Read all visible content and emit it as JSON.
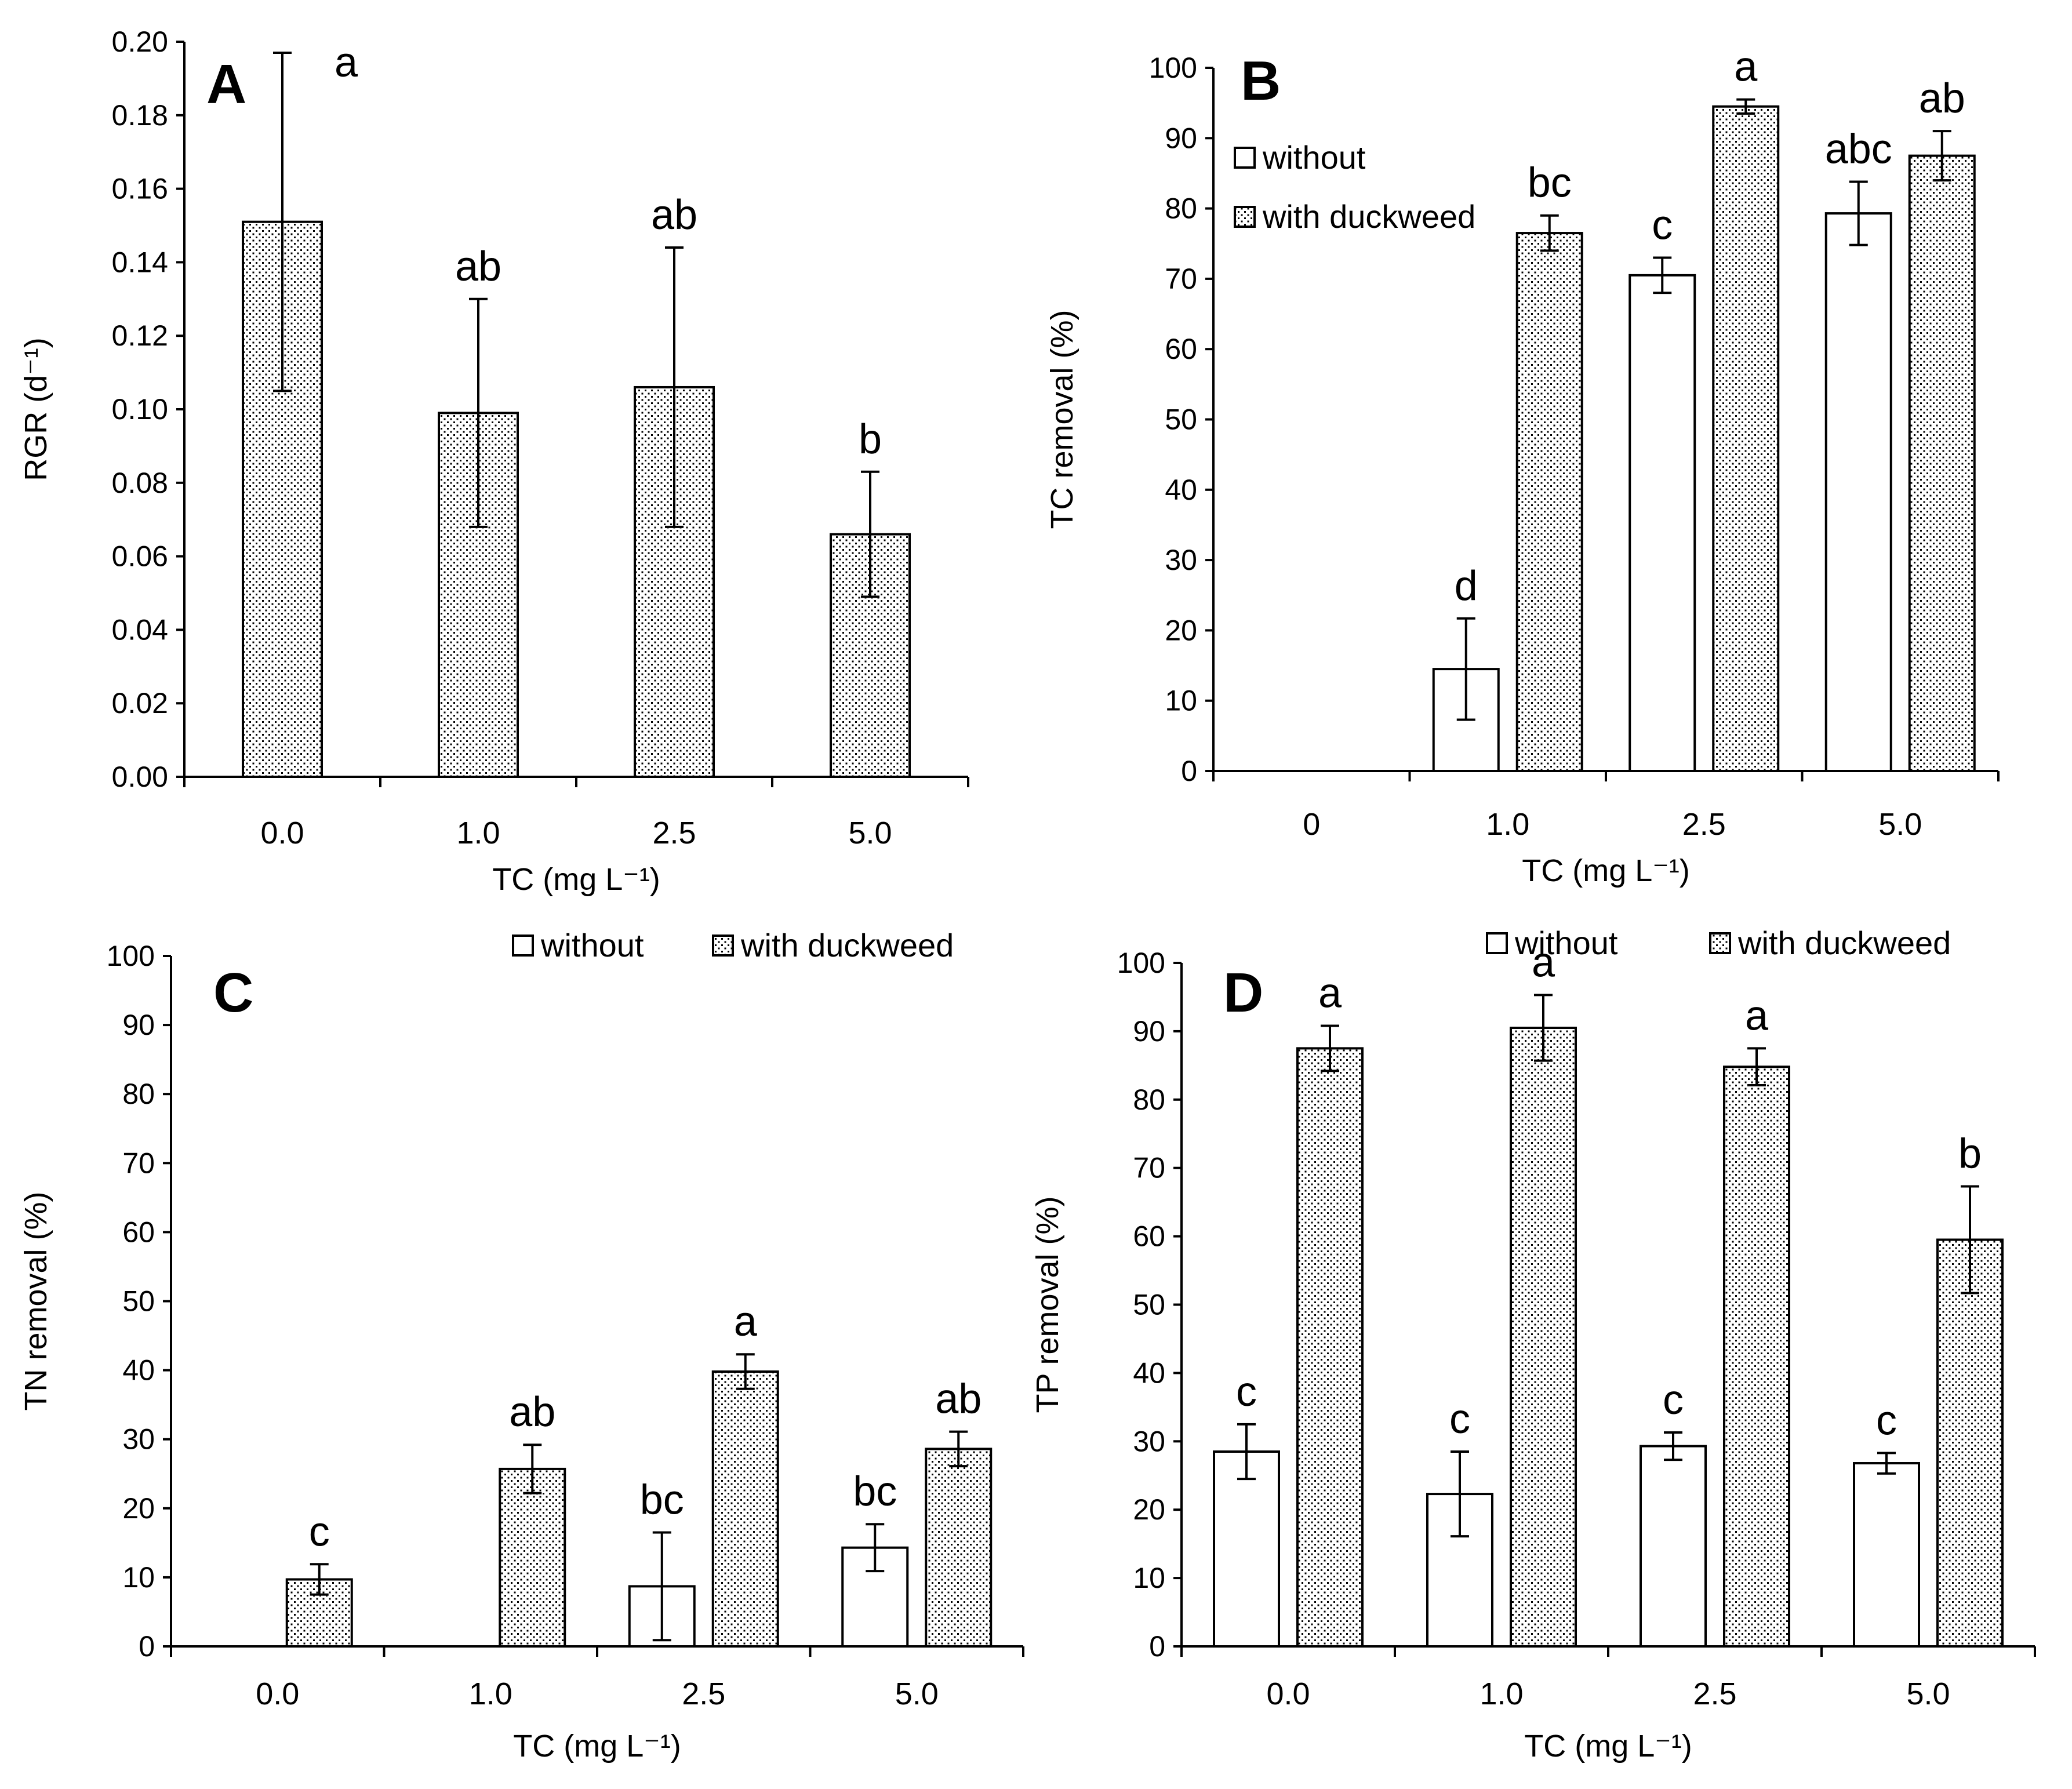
{
  "legend": {
    "without": "without",
    "with": "with duckweed"
  },
  "chart_data": [
    {
      "id": "A",
      "type": "bar",
      "panel_label": "A",
      "title": "",
      "xlabel": "TC (mg L⁻¹)",
      "ylabel": "RGR (d⁻¹)",
      "ylim": [
        0,
        0.2
      ],
      "ytick_step": 0.02,
      "ytick_labels": [
        "0.00",
        "0.02",
        "0.04",
        "0.06",
        "0.08",
        "0.10",
        "0.12",
        "0.14",
        "0.16",
        "0.18",
        "0.20"
      ],
      "categories": [
        "0.0",
        "1.0",
        "2.5",
        "5.0"
      ],
      "show_legend": false,
      "series": [
        {
          "name": "with duckweed",
          "pattern": "dots",
          "values": [
            0.151,
            0.099,
            0.106,
            0.066
          ],
          "errors": [
            0.046,
            0.031,
            0.038,
            0.017
          ],
          "letters": [
            "a",
            "ab",
            "ab",
            "b"
          ]
        }
      ]
    },
    {
      "id": "B",
      "type": "bar",
      "panel_label": "B",
      "title": "",
      "xlabel": "TC (mg L⁻¹)",
      "ylabel": "TC removal (%)",
      "ylim": [
        0,
        100
      ],
      "ytick_step": 10,
      "ytick_labels": [
        "0",
        "10",
        "20",
        "30",
        "40",
        "50",
        "60",
        "70",
        "80",
        "90",
        "100"
      ],
      "categories": [
        "0",
        "1.0",
        "2.5",
        "5.0"
      ],
      "show_legend": true,
      "legend_position": "top-left",
      "series": [
        {
          "name": "without",
          "pattern": "blank",
          "values": [
            0,
            14.5,
            70.5,
            79.3
          ],
          "errors": [
            0,
            7.2,
            2.5,
            4.5
          ],
          "letters": [
            "",
            "d",
            "c",
            "abc"
          ]
        },
        {
          "name": "with duckweed",
          "pattern": "dots",
          "values": [
            0,
            76.5,
            94.5,
            87.5
          ],
          "errors": [
            0,
            2.5,
            1.0,
            3.5
          ],
          "letters": [
            "",
            "bc",
            "a",
            "ab"
          ]
        }
      ]
    },
    {
      "id": "C",
      "type": "bar",
      "panel_label": "C",
      "title": "",
      "xlabel": "TC (mg L⁻¹)",
      "ylabel": "TN removal (%)",
      "ylim": [
        0,
        100
      ],
      "ytick_step": 10,
      "ytick_labels": [
        "0",
        "10",
        "20",
        "30",
        "40",
        "50",
        "60",
        "70",
        "80",
        "90",
        "100"
      ],
      "categories": [
        "0.0",
        "1.0",
        "2.5",
        "5.0"
      ],
      "show_legend": true,
      "legend_position": "top-right",
      "series": [
        {
          "name": "without",
          "pattern": "blank",
          "values": [
            0,
            0,
            8.7,
            14.3
          ],
          "errors": [
            0,
            0,
            7.8,
            3.4
          ],
          "letters": [
            "",
            "",
            "bc",
            "bc"
          ]
        },
        {
          "name": "with duckweed",
          "pattern": "dots",
          "values": [
            9.7,
            25.7,
            39.8,
            28.6
          ],
          "errors": [
            2.2,
            3.5,
            2.5,
            2.5
          ],
          "letters": [
            "c",
            "ab",
            "a",
            "ab"
          ]
        }
      ]
    },
    {
      "id": "D",
      "type": "bar",
      "panel_label": "D",
      "title": "",
      "xlabel": "TC (mg L⁻¹)",
      "ylabel": "TP removal (%)",
      "ylim": [
        0,
        100
      ],
      "ytick_step": 10,
      "ytick_labels": [
        "0",
        "10",
        "20",
        "30",
        "40",
        "50",
        "60",
        "70",
        "80",
        "90",
        "100"
      ],
      "categories": [
        "0.0",
        "1.0",
        "2.5",
        "5.0"
      ],
      "show_legend": true,
      "legend_position": "top-right",
      "series": [
        {
          "name": "without",
          "pattern": "blank",
          "values": [
            28.5,
            22.3,
            29.3,
            26.8
          ],
          "errors": [
            4.0,
            6.2,
            2.0,
            1.5
          ],
          "letters": [
            "c",
            "c",
            "c",
            "c"
          ]
        },
        {
          "name": "with duckweed",
          "pattern": "dots",
          "values": [
            87.5,
            90.5,
            84.8,
            59.5
          ],
          "errors": [
            3.3,
            4.8,
            2.7,
            7.8
          ],
          "letters": [
            "a",
            "a",
            "a",
            "b"
          ]
        }
      ]
    }
  ]
}
